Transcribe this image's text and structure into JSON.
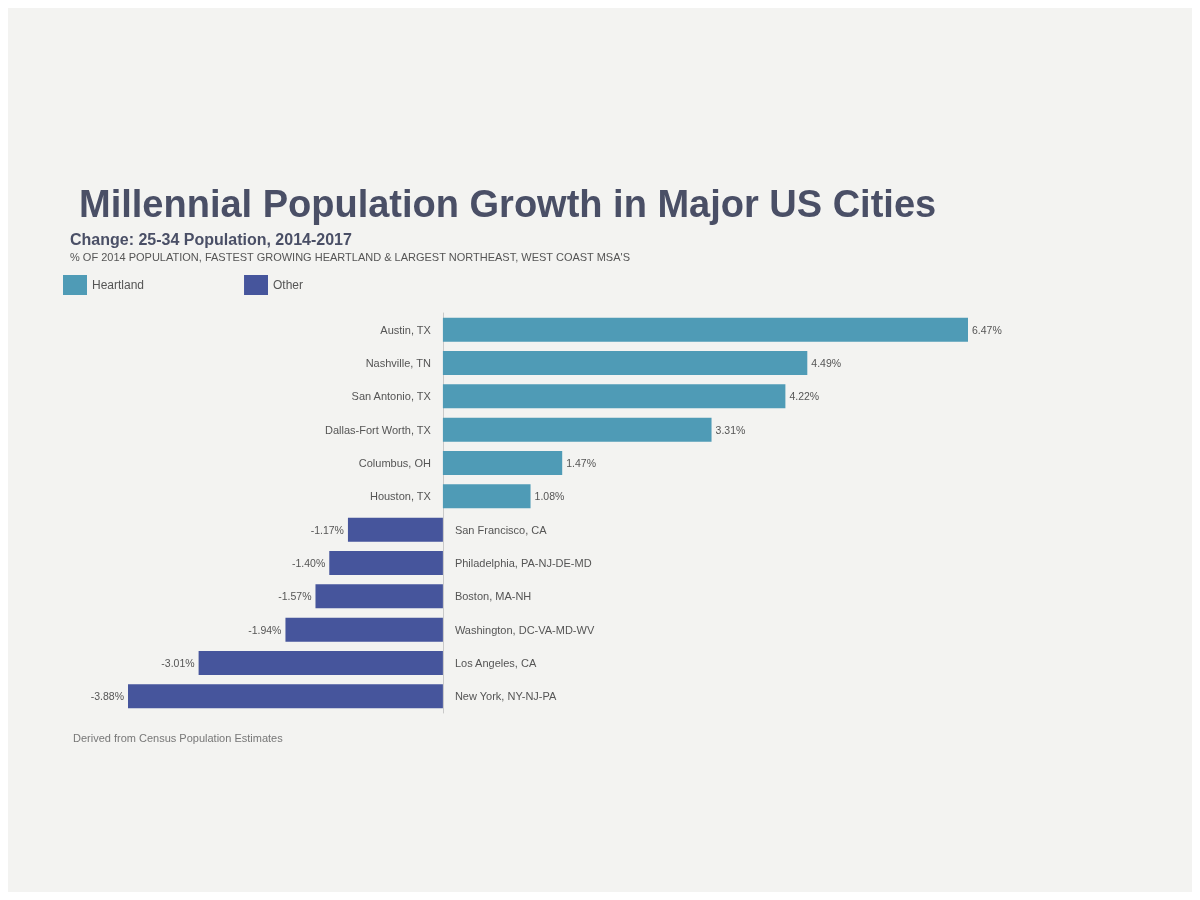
{
  "chart_data": {
    "type": "bar",
    "orientation": "horizontal",
    "title": "Millennial Population Growth in Major US Cities",
    "subtitle": "Change: 25-34 Population, 2014-2017\n% OF 2014 POPULATION, FASTEST GROWING HEARTLAND & LARGEST NORTHEAST, WEST COAST MSA'S",
    "categories": [
      "Austin, TX",
      "Nashville, TN",
      "San Antonio, TX",
      "Dallas-Fort Worth, TX",
      "Columbus, OH",
      "Houston, TX",
      "San Francisco, CA",
      "Philadelphia, PA-NJ-DE-MD",
      "Boston, MA-NH",
      "Washington, DC-VA-MD-WV",
      "Los Angeles, CA",
      "New York, NY-NJ-PA"
    ],
    "series": [
      {
        "name": "Heartland",
        "color": "#4f9bb6",
        "values": [
          6.47,
          4.49,
          4.22,
          3.31,
          1.47,
          1.08,
          null,
          null,
          null,
          null,
          null,
          null
        ],
        "value_labels": [
          "6.47%",
          "4.49%",
          "4.22%",
          "3.31%",
          "1.47%",
          "1.08%",
          null,
          null,
          null,
          null,
          null,
          null
        ]
      },
      {
        "name": "Other",
        "color": "#46559c",
        "values": [
          null,
          null,
          null,
          null,
          null,
          null,
          -1.17,
          -1.4,
          -1.57,
          -1.94,
          -3.01,
          -3.88
        ],
        "value_labels": [
          null,
          null,
          null,
          null,
          null,
          null,
          "-1.17%",
          "-1.40%",
          "-1.57%",
          "-1.94%",
          "-3.01%",
          "-3.88%"
        ]
      }
    ],
    "legend": "top left",
    "tick_labels": "y",
    "annotations": [
      "Derived from Census Population Estimates"
    ]
  }
}
